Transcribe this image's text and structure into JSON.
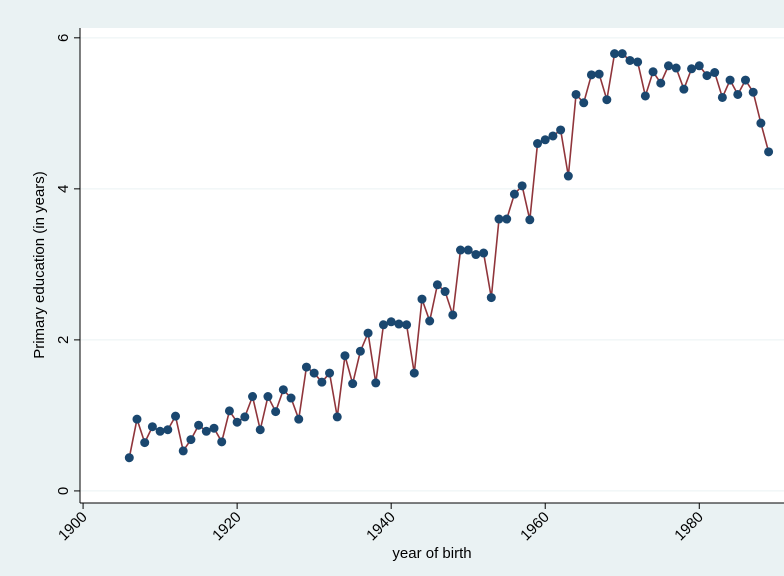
{
  "chart_data": {
    "type": "line",
    "x_label": "year of birth",
    "y_label": "Primary education (in years)",
    "x": [
      1906,
      1907,
      1908,
      1909,
      1910,
      1911,
      1912,
      1913,
      1914,
      1915,
      1916,
      1917,
      1918,
      1919,
      1920,
      1921,
      1922,
      1923,
      1924,
      1925,
      1926,
      1927,
      1928,
      1929,
      1930,
      1931,
      1932,
      1933,
      1934,
      1935,
      1936,
      1937,
      1938,
      1939,
      1940,
      1941,
      1942,
      1943,
      1944,
      1945,
      1946,
      1947,
      1948,
      1949,
      1950,
      1951,
      1952,
      1953,
      1954,
      1955,
      1956,
      1957,
      1958,
      1959,
      1960,
      1961,
      1962,
      1963,
      1964,
      1965,
      1966,
      1967,
      1968,
      1969,
      1970,
      1971,
      1972,
      1973,
      1974,
      1975,
      1976,
      1977,
      1978,
      1979,
      1980,
      1981,
      1982,
      1983,
      1984,
      1985,
      1986,
      1987,
      1988,
      1989
    ],
    "series": [
      {
        "color": "#90353b",
        "marker_color": "#1a476f",
        "values": [
          0.44,
          0.95,
          0.64,
          0.85,
          0.79,
          0.81,
          0.99,
          0.53,
          0.68,
          0.87,
          0.79,
          0.83,
          0.65,
          1.06,
          0.91,
          0.98,
          1.25,
          0.81,
          1.25,
          1.05,
          1.34,
          1.23,
          0.95,
          1.64,
          1.56,
          1.44,
          1.56,
          0.98,
          1.79,
          1.42,
          1.85,
          2.09,
          1.43,
          2.2,
          2.24,
          2.21,
          2.2,
          1.56,
          2.54,
          2.25,
          2.73,
          2.64,
          2.33,
          3.19,
          3.19,
          3.13,
          3.15,
          2.56,
          3.6,
          3.6,
          3.93,
          4.04,
          3.59,
          4.6,
          4.65,
          4.7,
          4.78,
          4.17,
          5.25,
          5.14,
          5.51,
          5.52,
          5.18,
          5.79,
          5.79,
          5.7,
          5.68,
          5.23,
          5.55,
          5.4,
          5.63,
          5.6,
          5.32,
          5.59,
          5.63,
          5.5,
          5.54,
          5.21,
          5.44,
          5.25,
          5.44,
          5.28,
          4.87,
          4.49
        ]
      }
    ],
    "xlim": [
      1899.6,
      1991
    ],
    "xticks": [
      1900,
      1920,
      1940,
      1960,
      1980
    ],
    "ylim": [
      -0.16,
      6.13
    ],
    "yticks": [
      0,
      2,
      4,
      6
    ],
    "grid": true
  }
}
